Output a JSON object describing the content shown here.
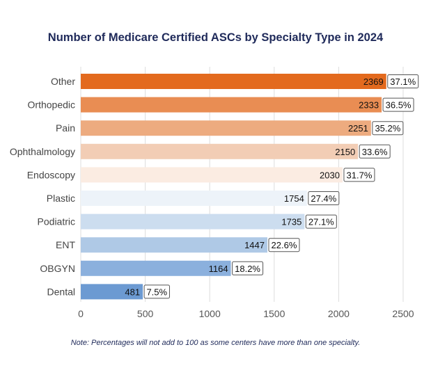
{
  "chart_data": {
    "type": "bar",
    "orientation": "horizontal",
    "title": "Number of Medicare Certified ASCs by Specialty Type in 2024",
    "categories": [
      "Other",
      "Orthopedic",
      "Pain",
      "Ophthalmology",
      "Endoscopy",
      "Plastic",
      "Podiatric",
      "ENT",
      "OBGYN",
      "Dental"
    ],
    "values": [
      2369,
      2333,
      2251,
      2150,
      2030,
      1754,
      1735,
      1447,
      1164,
      481
    ],
    "percent_labels": [
      "37.1%",
      "36.5%",
      "35.2%",
      "33.6%",
      "31.7%",
      "27.4%",
      "27.1%",
      "22.6%",
      "18.2%",
      "7.5%"
    ],
    "colors": [
      "#E36A1E",
      "#E98D53",
      "#EDAB7F",
      "#F2CDB5",
      "#FBECE2",
      "#EDF3F9",
      "#CCDDEF",
      "#AFC9E6",
      "#8BB0DD",
      "#6C9AD2"
    ],
    "xlim": [
      0,
      2500
    ],
    "xticks": [
      0,
      500,
      1000,
      1500,
      2000,
      2500
    ],
    "xlabel": "",
    "ylabel": "",
    "grid": "vertical",
    "note": "Note: Percentages will not add to 100 as some centers have more than one specialty."
  }
}
